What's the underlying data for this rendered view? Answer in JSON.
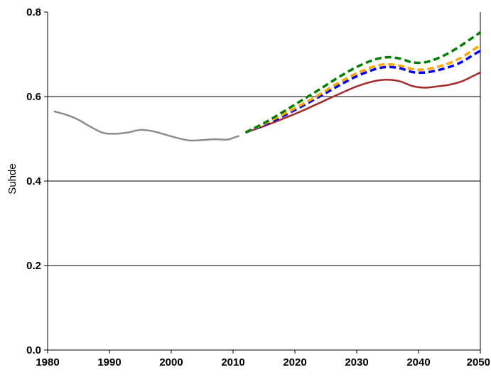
{
  "chart_data": {
    "type": "line",
    "title": "",
    "xlabel": "",
    "ylabel": "Suhde",
    "xlim": [
      1980,
      2050
    ],
    "ylim": [
      0,
      0.8
    ],
    "xticks": [
      "1980",
      "1990",
      "2000",
      "2010",
      "2020",
      "2030",
      "2040",
      "2050"
    ],
    "yticks": [
      "0.0",
      "0.2",
      "0.4",
      "0.6",
      "0.8"
    ],
    "grid": "horizontal",
    "legend": "none",
    "series": [
      {
        "color": "#8c8c8c",
        "style": "solid",
        "x": [
          1981,
          1983,
          1985,
          1987,
          1989,
          1991,
          1993,
          1995,
          1997,
          1999,
          2001,
          2003,
          2005,
          2007,
          2009,
          2010,
          2011
        ],
        "y": [
          0.565,
          0.557,
          0.545,
          0.528,
          0.514,
          0.512,
          0.515,
          0.521,
          0.518,
          0.51,
          0.502,
          0.496,
          0.497,
          0.499,
          0.498,
          0.502,
          0.507
        ]
      },
      {
        "color": "#a52a2a",
        "style": "solid",
        "x": [
          2012,
          2015,
          2018,
          2021,
          2024,
          2027,
          2030,
          2033,
          2035,
          2037,
          2039,
          2041,
          2043,
          2045,
          2047,
          2049,
          2050
        ],
        "y": [
          0.515,
          0.53,
          0.547,
          0.565,
          0.585,
          0.605,
          0.624,
          0.637,
          0.64,
          0.636,
          0.625,
          0.621,
          0.624,
          0.628,
          0.636,
          0.65,
          0.657
        ]
      },
      {
        "color": "#0000ff",
        "style": "dashed",
        "x": [
          2012,
          2015,
          2018,
          2021,
          2024,
          2027,
          2030,
          2033,
          2035,
          2037,
          2039,
          2041,
          2043,
          2045,
          2047,
          2049,
          2050
        ],
        "y": [
          0.515,
          0.533,
          0.553,
          0.576,
          0.6,
          0.625,
          0.648,
          0.665,
          0.67,
          0.667,
          0.658,
          0.657,
          0.662,
          0.67,
          0.682,
          0.7,
          0.708
        ]
      },
      {
        "color": "#ffa500",
        "style": "dashed",
        "x": [
          2012,
          2015,
          2018,
          2021,
          2024,
          2027,
          2030,
          2033,
          2035,
          2037,
          2039,
          2041,
          2043,
          2045,
          2047,
          2049,
          2050
        ],
        "y": [
          0.515,
          0.535,
          0.557,
          0.58,
          0.605,
          0.632,
          0.655,
          0.672,
          0.676,
          0.673,
          0.665,
          0.664,
          0.67,
          0.679,
          0.693,
          0.712,
          0.722
        ]
      },
      {
        "color": "#008000",
        "style": "dashed",
        "x": [
          2012,
          2015,
          2018,
          2021,
          2024,
          2027,
          2030,
          2033,
          2035,
          2037,
          2039,
          2041,
          2043,
          2045,
          2047,
          2049,
          2050
        ],
        "y": [
          0.515,
          0.537,
          0.563,
          0.59,
          0.617,
          0.645,
          0.67,
          0.688,
          0.693,
          0.69,
          0.681,
          0.681,
          0.69,
          0.704,
          0.722,
          0.742,
          0.752
        ]
      }
    ]
  }
}
